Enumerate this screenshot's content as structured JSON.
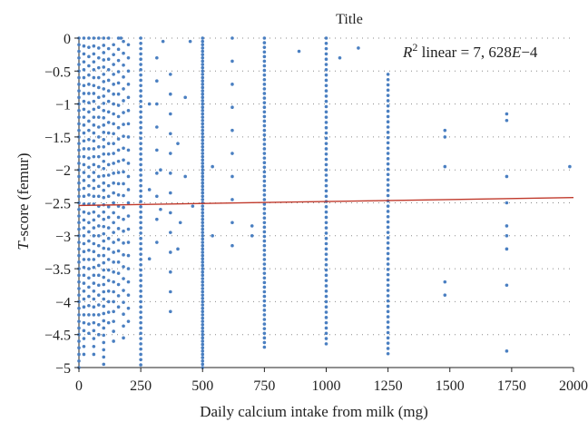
{
  "chart_data": {
    "type": "scatter",
    "title": "Title",
    "xlabel": "Daily calcium intake from milk (mg)",
    "ylabel_prefix": "T",
    "ylabel_suffix": "-score (femur)",
    "xlim": [
      0,
      2000
    ],
    "ylim": [
      -5,
      0
    ],
    "x_ticks": [
      0,
      250,
      500,
      750,
      1000,
      1250,
      1500,
      1750,
      2000
    ],
    "x_tick_labels": [
      "0",
      "250",
      "500",
      "750",
      "1000",
      "1250",
      "1500",
      "1750",
      "2000"
    ],
    "y_ticks": [
      0,
      -0.5,
      -1,
      -1.5,
      -2,
      -2.5,
      -3,
      -3.5,
      -4,
      -4.5,
      -5
    ],
    "y_tick_labels": [
      "0",
      "−0.5",
      "−1",
      "−1.5",
      "−2",
      "−2.5",
      "−3",
      "−3.5",
      "−4",
      "−4.5",
      "−5"
    ],
    "grid": "horizontal dotted",
    "annotation": {
      "r": "R",
      "sup": "2",
      "mid": " linear = 7, 628",
      "e": "E",
      "tail": "−4"
    },
    "fit_line": {
      "x": [
        0,
        2000
      ],
      "y": [
        -2.54,
        -2.42
      ]
    },
    "columns": [
      {
        "x": 0,
        "y_min": -5,
        "y_max": 0,
        "step": 0.1
      },
      {
        "x": 20,
        "y_min": -4.8,
        "y_max": 0,
        "step": 0.12
      },
      {
        "x": 40,
        "y_min": -4.6,
        "y_max": 0,
        "step": 0.14
      },
      {
        "x": 60,
        "y_min": -4.9,
        "y_max": 0,
        "step": 0.12
      },
      {
        "x": 80,
        "y_min": -4.5,
        "y_max": 0,
        "step": 0.15
      },
      {
        "x": 100,
        "y_min": -4.95,
        "y_max": 0,
        "step": 0.11
      },
      {
        "x": 120,
        "y_min": -4.4,
        "y_max": 0,
        "step": 0.16
      },
      {
        "x": 140,
        "y_min": -4.7,
        "y_max": -0.1,
        "step": 0.15
      },
      {
        "x": 160,
        "y_min": -4.2,
        "y_max": 0,
        "step": 0.17
      },
      {
        "x": 180,
        "y_min": -4.6,
        "y_max": -0.05,
        "step": 0.18
      },
      {
        "x": 200,
        "y_min": -4.3,
        "y_max": -0.1,
        "step": 0.2
      },
      {
        "x": 250,
        "y_min": -5,
        "y_max": 0,
        "step": 0.08
      },
      {
        "x": 315,
        "y_min": -3.4,
        "y_max": -0.3,
        "step": 0.35
      },
      {
        "x": 370,
        "y_min": -4.3,
        "y_max": -0.55,
        "step": 0.3
      },
      {
        "x": 500,
        "y_min": -5,
        "y_max": 0,
        "step": 0.05
      },
      {
        "x": 620,
        "y_min": -3.2,
        "y_max": 0,
        "step": 0.35
      },
      {
        "x": 750,
        "y_min": -4.75,
        "y_max": 0,
        "step": 0.07
      },
      {
        "x": 1000,
        "y_min": -4.7,
        "y_max": 0,
        "step": 0.08
      },
      {
        "x": 1250,
        "y_min": -4.85,
        "y_max": -0.55,
        "step": 0.08
      }
    ],
    "points": [
      {
        "x": 170,
        "y": 0
      },
      {
        "x": 340,
        "y": -0.05
      },
      {
        "x": 450,
        "y": -0.05
      },
      {
        "x": 1055,
        "y": -0.3
      },
      {
        "x": 890,
        "y": -0.2
      },
      {
        "x": 1130,
        "y": -0.15
      },
      {
        "x": 1480,
        "y": -1.4
      },
      {
        "x": 1480,
        "y": -1.5
      },
      {
        "x": 1480,
        "y": -1.95
      },
      {
        "x": 1480,
        "y": -3.7
      },
      {
        "x": 1480,
        "y": -3.9
      },
      {
        "x": 1730,
        "y": -1.15
      },
      {
        "x": 1730,
        "y": -1.25
      },
      {
        "x": 1730,
        "y": -2.1
      },
      {
        "x": 1730,
        "y": -2.5
      },
      {
        "x": 1730,
        "y": -2.85
      },
      {
        "x": 1730,
        "y": -3.0
      },
      {
        "x": 1730,
        "y": -3.2
      },
      {
        "x": 1730,
        "y": -3.75
      },
      {
        "x": 1730,
        "y": -4.75
      },
      {
        "x": 1985,
        "y": -1.95
      },
      {
        "x": 430,
        "y": -0.9
      },
      {
        "x": 430,
        "y": -2.1
      },
      {
        "x": 540,
        "y": -1.95
      },
      {
        "x": 540,
        "y": -3.0
      },
      {
        "x": 700,
        "y": -3.0
      },
      {
        "x": 700,
        "y": -2.85
      },
      {
        "x": 330,
        "y": -2.0
      },
      {
        "x": 330,
        "y": -2.6
      },
      {
        "x": 460,
        "y": -2.55
      },
      {
        "x": 285,
        "y": -2.3
      },
      {
        "x": 285,
        "y": -1.0
      },
      {
        "x": 285,
        "y": -3.35
      },
      {
        "x": 400,
        "y": -3.2
      },
      {
        "x": 400,
        "y": -1.6
      },
      {
        "x": 410,
        "y": -2.8
      }
    ],
    "point_color": "#4a7fc1",
    "fit_color": "#c0392b"
  }
}
